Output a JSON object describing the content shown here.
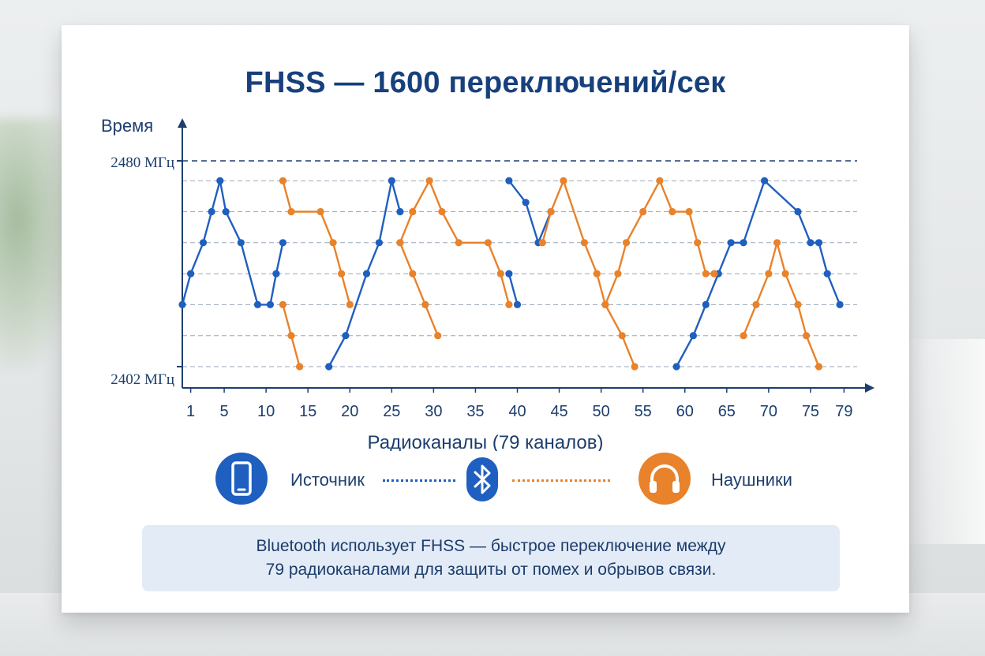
{
  "title": "FHSS — 1600 переключений/сек",
  "info_text": {
    "line1": "Bluetooth использует FHSS — быстрое переключение между",
    "line2": "79 радиоканалами для защиты от помех и обрывов связи."
  },
  "legend": {
    "source_label": "Источник",
    "headphones_label": "Наушники",
    "source_icon": "smartphone-icon",
    "bluetooth_icon": "bluetooth-icon",
    "headphones_icon": "headphones-icon"
  },
  "colors": {
    "blue": "#1f5fbf",
    "orange": "#e8822b",
    "title": "#17407c",
    "axis": "#1d3e6e"
  },
  "chart_data": {
    "type": "line",
    "title": "FHSS — 1600 переключений/сек",
    "xlabel": "Радиоканалы (79 каналов)",
    "ylabel": "Время",
    "y_top_label": "2480 МГц",
    "y_bottom_label": "2402 МГц",
    "xticks": [
      1,
      5,
      10,
      15,
      20,
      25,
      30,
      35,
      40,
      45,
      50,
      55,
      60,
      65,
      70,
      75,
      79
    ],
    "xlim": [
      0,
      80
    ],
    "ylim": [
      0,
      7
    ],
    "grid_levels": [
      1,
      2,
      3,
      4,
      5,
      6,
      7
    ],
    "series": [
      {
        "color": "#1f5fbf",
        "segments": [
          [
            [
              0,
              3
            ],
            [
              1,
              4
            ],
            [
              2.5,
              5
            ],
            [
              3.5,
              6
            ],
            [
              4.5,
              7
            ],
            [
              5.2,
              6
            ],
            [
              7,
              5
            ],
            [
              9,
              3
            ],
            [
              10.5,
              3
            ],
            [
              11.2,
              4
            ],
            [
              12,
              5
            ]
          ],
          [
            [
              17.5,
              1
            ],
            [
              19.5,
              2
            ],
            [
              22,
              4
            ],
            [
              23.5,
              5
            ],
            [
              25,
              7
            ],
            [
              26,
              6
            ]
          ],
          [
            [
              39,
              7
            ],
            [
              41,
              6.3
            ],
            [
              42.5,
              5
            ],
            [
              44,
              6
            ]
          ],
          [
            [
              39,
              4
            ],
            [
              40,
              3
            ]
          ],
          [
            [
              59,
              1
            ],
            [
              61,
              2
            ],
            [
              62.5,
              3
            ],
            [
              64,
              4
            ],
            [
              65.5,
              5
            ],
            [
              67,
              5
            ],
            [
              69.5,
              7
            ],
            [
              73.5,
              6
            ],
            [
              75,
              5
            ],
            [
              76,
              5
            ],
            [
              77,
              4
            ],
            [
              78.5,
              3
            ]
          ]
        ]
      },
      {
        "color": "#e8822b",
        "segments": [
          [
            [
              12,
              7
            ],
            [
              13,
              6
            ],
            [
              16.5,
              6
            ],
            [
              18,
              5
            ],
            [
              19,
              4
            ],
            [
              20,
              3
            ]
          ],
          [
            [
              12,
              3
            ],
            [
              13,
              2
            ],
            [
              14,
              1
            ]
          ],
          [
            [
              26,
              5
            ],
            [
              27.5,
              4
            ],
            [
              29,
              3
            ],
            [
              30.5,
              2
            ]
          ],
          [
            [
              26,
              5
            ],
            [
              27.5,
              6
            ],
            [
              29.5,
              7
            ],
            [
              31,
              6
            ],
            [
              33,
              5
            ],
            [
              36.5,
              5
            ],
            [
              38,
              4
            ],
            [
              39,
              3
            ]
          ],
          [
            [
              43,
              5
            ],
            [
              44,
              6
            ],
            [
              45.5,
              7
            ],
            [
              48,
              5
            ],
            [
              49.5,
              4
            ],
            [
              50.5,
              3
            ],
            [
              52.5,
              2
            ],
            [
              54,
              1
            ]
          ],
          [
            [
              50.5,
              3
            ],
            [
              52,
              4
            ],
            [
              53,
              5
            ],
            [
              55,
              6
            ],
            [
              57,
              7
            ],
            [
              58.5,
              6
            ],
            [
              60.5,
              6
            ],
            [
              61.5,
              5
            ],
            [
              62.5,
              4
            ],
            [
              63.5,
              4
            ]
          ],
          [
            [
              67,
              2
            ],
            [
              68.5,
              3
            ],
            [
              70,
              4
            ],
            [
              71,
              5
            ],
            [
              72,
              4
            ],
            [
              73.5,
              3
            ],
            [
              74.5,
              2
            ],
            [
              76,
              1
            ]
          ]
        ]
      }
    ]
  }
}
